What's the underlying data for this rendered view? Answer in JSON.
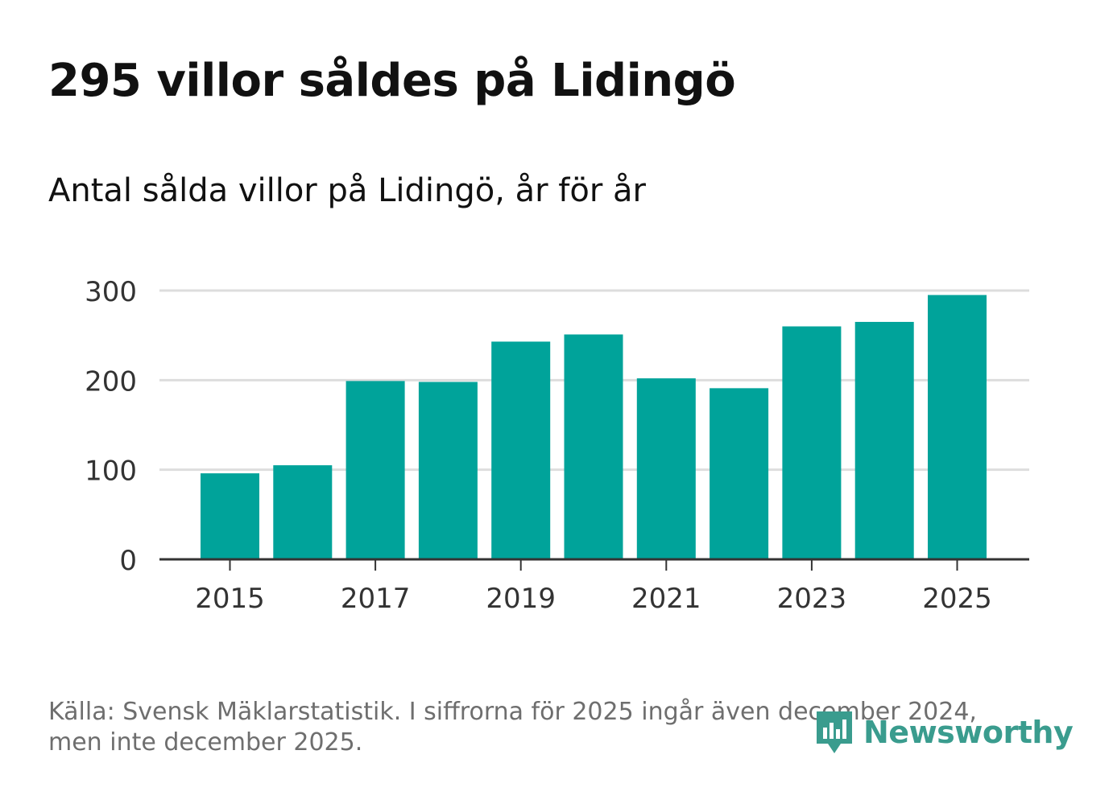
{
  "header": {
    "title": "295 villor såldes på Lidingö",
    "subtitle": "Antal sålda villor på Lidingö, år för år"
  },
  "footer": {
    "source_line1": "Källa: Svensk Mäklarstatistik. I siffrorna för 2025 ingår även december 2024,",
    "source_line2": "men inte december 2025."
  },
  "logo": {
    "text": "Newsworthy",
    "icon": "newsworthy-logo-icon",
    "color": "#3a9c8e"
  },
  "colors": {
    "bar": "#00a39a",
    "grid": "#dddddd",
    "axis": "#333333",
    "tick_label": "#333333"
  },
  "chart_data": {
    "type": "bar",
    "title": "295 villor såldes på Lidingö",
    "subtitle": "Antal sålda villor på Lidingö, år för år",
    "xlabel": "",
    "ylabel": "",
    "categories": [
      "2015",
      "2016",
      "2017",
      "2018",
      "2019",
      "2020",
      "2021",
      "2022",
      "2023",
      "2024",
      "2025"
    ],
    "values": [
      96,
      105,
      199,
      198,
      243,
      251,
      202,
      191,
      260,
      265,
      295
    ],
    "x_tick_labels": [
      "2015",
      "2017",
      "2019",
      "2021",
      "2023",
      "2025"
    ],
    "y_ticks": [
      0,
      100,
      200,
      300
    ],
    "y_tick_labels": [
      "0",
      "100",
      "200",
      "300"
    ],
    "ylim": [
      0,
      300
    ],
    "grid": true,
    "legend": "none"
  }
}
